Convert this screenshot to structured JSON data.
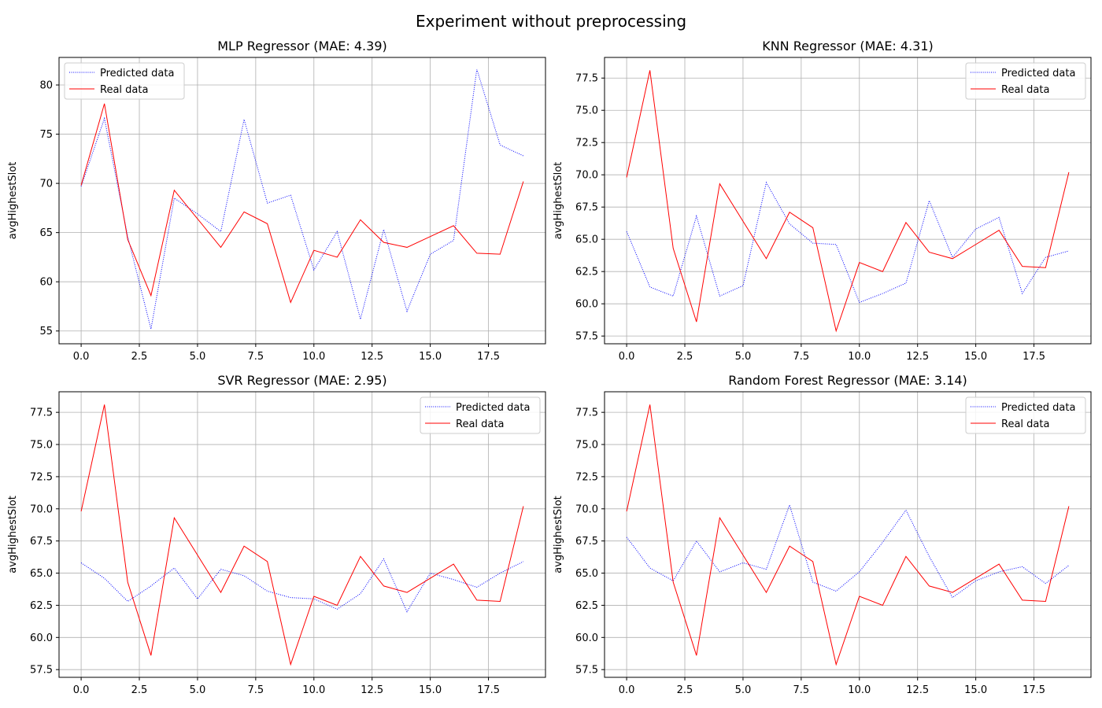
{
  "figure": {
    "suptitle": "Experiment without preprocessing"
  },
  "chart_data": [
    {
      "type": "line",
      "title": "MLP Regressor (MAE: 4.39)",
      "xlabel": "",
      "ylabel": "avgHighestSlot",
      "x": [
        0,
        1,
        2,
        3,
        4,
        5,
        6,
        7,
        8,
        9,
        10,
        11,
        12,
        13,
        14,
        15,
        16,
        17,
        18,
        19
      ],
      "xlim": [
        -0.95,
        19.95
      ],
      "ylim": [
        53.7,
        82.8
      ],
      "xticks": [
        0.0,
        2.5,
        5.0,
        7.5,
        10.0,
        12.5,
        15.0,
        17.5
      ],
      "xtick_labels": [
        "0.0",
        "2.5",
        "5.0",
        "7.5",
        "10.0",
        "12.5",
        "15.0",
        "17.5"
      ],
      "yticks": [
        55,
        60,
        65,
        70,
        75,
        80
      ],
      "ytick_labels": [
        "55",
        "60",
        "65",
        "70",
        "75",
        "80"
      ],
      "grid": true,
      "legend_position": "upper-left",
      "series": [
        {
          "name": "Predicted data",
          "color": "#0000ff",
          "style": "dotted",
          "values": [
            69.7,
            76.6,
            64.6,
            55.2,
            68.5,
            66.9,
            65.1,
            76.5,
            68.0,
            68.8,
            61.2,
            65.1,
            56.2,
            65.3,
            57.0,
            62.8,
            64.2,
            81.6,
            73.9,
            72.8
          ]
        },
        {
          "name": "Real data",
          "color": "#ff0000",
          "style": "solid",
          "values": [
            69.8,
            78.1,
            64.3,
            58.6,
            69.3,
            66.4,
            63.5,
            67.1,
            65.9,
            57.9,
            63.2,
            62.5,
            66.3,
            64.0,
            63.5,
            64.6,
            65.7,
            62.9,
            62.8,
            70.2
          ]
        }
      ]
    },
    {
      "type": "line",
      "title": "KNN Regressor (MAE: 4.31)",
      "xlabel": "",
      "ylabel": "avgHighestSlot",
      "x": [
        0,
        1,
        2,
        3,
        4,
        5,
        6,
        7,
        8,
        9,
        10,
        11,
        12,
        13,
        14,
        15,
        16,
        17,
        18,
        19
      ],
      "xlim": [
        -0.95,
        19.95
      ],
      "ylim": [
        56.9,
        79.1
      ],
      "xticks": [
        0.0,
        2.5,
        5.0,
        7.5,
        10.0,
        12.5,
        15.0,
        17.5
      ],
      "xtick_labels": [
        "0.0",
        "2.5",
        "5.0",
        "7.5",
        "10.0",
        "12.5",
        "15.0",
        "17.5"
      ],
      "yticks": [
        57.5,
        60.0,
        62.5,
        65.0,
        67.5,
        70.0,
        72.5,
        75.0,
        77.5
      ],
      "ytick_labels": [
        "57.5",
        "60.0",
        "62.5",
        "65.0",
        "67.5",
        "70.0",
        "72.5",
        "75.0",
        "77.5"
      ],
      "grid": true,
      "legend_position": "upper-right",
      "series": [
        {
          "name": "Predicted data",
          "color": "#0000ff",
          "style": "dotted",
          "values": [
            65.6,
            61.3,
            60.6,
            66.8,
            60.6,
            61.4,
            69.4,
            66.2,
            64.7,
            64.6,
            60.1,
            60.8,
            61.6,
            68.0,
            63.6,
            65.8,
            66.7,
            60.8,
            63.6,
            64.1
          ]
        },
        {
          "name": "Real data",
          "color": "#ff0000",
          "style": "solid",
          "values": [
            69.8,
            78.1,
            64.3,
            58.6,
            69.3,
            66.4,
            63.5,
            67.1,
            65.9,
            57.9,
            63.2,
            62.5,
            66.3,
            64.0,
            63.5,
            64.6,
            65.7,
            62.9,
            62.8,
            70.2
          ]
        }
      ]
    },
    {
      "type": "line",
      "title": "SVR Regressor (MAE: 2.95)",
      "xlabel": "",
      "ylabel": "avgHighestSlot",
      "x": [
        0,
        1,
        2,
        3,
        4,
        5,
        6,
        7,
        8,
        9,
        10,
        11,
        12,
        13,
        14,
        15,
        16,
        17,
        18,
        19
      ],
      "xlim": [
        -0.95,
        19.95
      ],
      "ylim": [
        56.9,
        79.1
      ],
      "xticks": [
        0.0,
        2.5,
        5.0,
        7.5,
        10.0,
        12.5,
        15.0,
        17.5
      ],
      "xtick_labels": [
        "0.0",
        "2.5",
        "5.0",
        "7.5",
        "10.0",
        "12.5",
        "15.0",
        "17.5"
      ],
      "yticks": [
        57.5,
        60.0,
        62.5,
        65.0,
        67.5,
        70.0,
        72.5,
        75.0,
        77.5
      ],
      "ytick_labels": [
        "57.5",
        "60.0",
        "62.5",
        "65.0",
        "67.5",
        "70.0",
        "72.5",
        "75.0",
        "77.5"
      ],
      "grid": true,
      "legend_position": "upper-right",
      "series": [
        {
          "name": "Predicted data",
          "color": "#0000ff",
          "style": "dotted",
          "values": [
            65.8,
            64.6,
            62.8,
            64.0,
            65.4,
            63.0,
            65.3,
            64.8,
            63.6,
            63.1,
            63.0,
            62.2,
            63.4,
            66.1,
            62.0,
            65.0,
            64.5,
            63.9,
            65.0,
            65.9
          ]
        },
        {
          "name": "Real data",
          "color": "#ff0000",
          "style": "solid",
          "values": [
            69.8,
            78.1,
            64.3,
            58.6,
            69.3,
            66.4,
            63.5,
            67.1,
            65.9,
            57.9,
            63.2,
            62.5,
            66.3,
            64.0,
            63.5,
            64.6,
            65.7,
            62.9,
            62.8,
            70.2
          ]
        }
      ]
    },
    {
      "type": "line",
      "title": "Random Forest Regressor (MAE: 3.14)",
      "xlabel": "",
      "ylabel": "avgHighestSlot",
      "x": [
        0,
        1,
        2,
        3,
        4,
        5,
        6,
        7,
        8,
        9,
        10,
        11,
        12,
        13,
        14,
        15,
        16,
        17,
        18,
        19
      ],
      "xlim": [
        -0.95,
        19.95
      ],
      "ylim": [
        56.9,
        79.1
      ],
      "xticks": [
        0.0,
        2.5,
        5.0,
        7.5,
        10.0,
        12.5,
        15.0,
        17.5
      ],
      "xtick_labels": [
        "0.0",
        "2.5",
        "5.0",
        "7.5",
        "10.0",
        "12.5",
        "15.0",
        "17.5"
      ],
      "yticks": [
        57.5,
        60.0,
        62.5,
        65.0,
        67.5,
        70.0,
        72.5,
        75.0,
        77.5
      ],
      "ytick_labels": [
        "57.5",
        "60.0",
        "62.5",
        "65.0",
        "67.5",
        "70.0",
        "72.5",
        "75.0",
        "77.5"
      ],
      "grid": true,
      "legend_position": "upper-right",
      "series": [
        {
          "name": "Predicted data",
          "color": "#0000ff",
          "style": "dotted",
          "values": [
            67.8,
            65.4,
            64.4,
            67.5,
            65.1,
            65.8,
            65.3,
            70.3,
            64.3,
            63.6,
            65.1,
            67.4,
            69.9,
            66.3,
            63.1,
            64.4,
            65.1,
            65.5,
            64.2,
            65.6
          ]
        },
        {
          "name": "Real data",
          "color": "#ff0000",
          "style": "solid",
          "values": [
            69.8,
            78.1,
            64.3,
            58.6,
            69.3,
            66.4,
            63.5,
            67.1,
            65.9,
            57.9,
            63.2,
            62.5,
            66.3,
            64.0,
            63.5,
            64.6,
            65.7,
            62.9,
            62.8,
            70.2
          ]
        }
      ]
    }
  ]
}
